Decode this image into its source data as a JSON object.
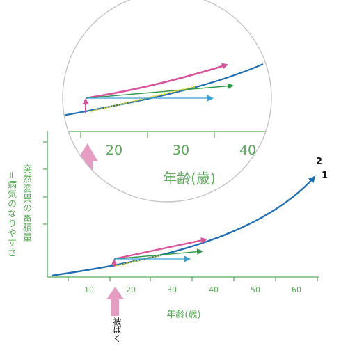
{
  "diagram": {
    "ylabel_line1": "突然変異の蓄積量",
    "ylabel_line2": "=病気のなりやすさ",
    "xlabel": "年齢(歳)",
    "exposure_label": "被ばく",
    "curve_labels": [
      "2",
      "1"
    ],
    "main_ticks": [
      "10",
      "20",
      "30",
      "40",
      "50",
      "60"
    ],
    "zoom_ticks": [
      "20",
      "30",
      "40"
    ],
    "zoom_xlabel": "年齢(歳)",
    "colors": {
      "curve": "#1f6fb5",
      "pink": "#d9529a",
      "green": "#2e9a48",
      "cyan": "#3aa0d8",
      "yellow": "#e8d400",
      "axis": "#5aaa5a",
      "arrow_light": "#e79cc2"
    }
  }
}
